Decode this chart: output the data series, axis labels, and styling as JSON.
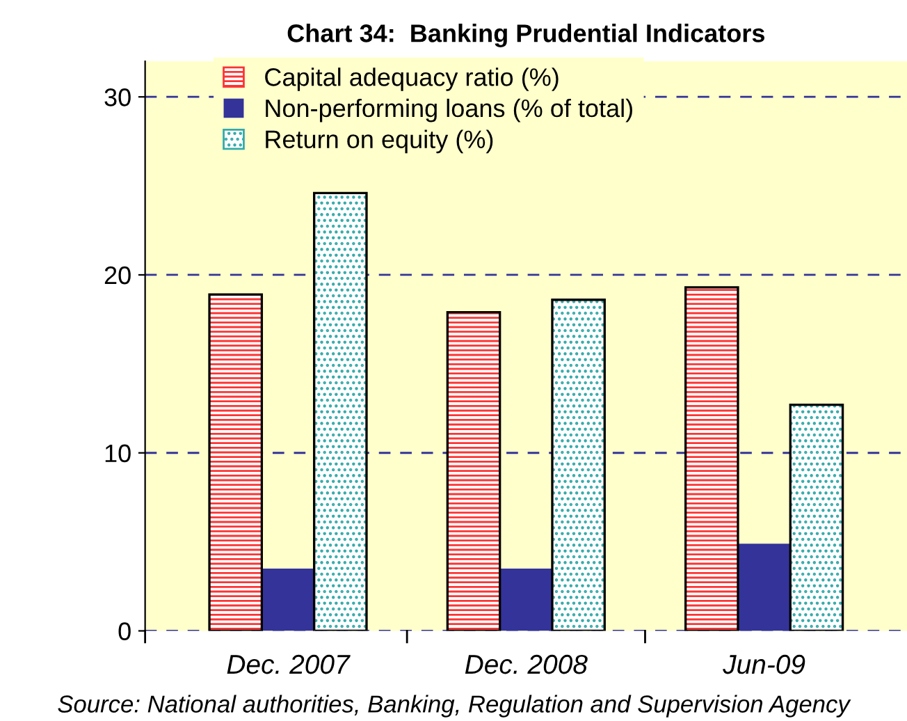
{
  "chart_data": {
    "type": "bar",
    "title": "Chart 34:  Banking Prudential Indicators",
    "categories": [
      "Dec. 2007",
      "Dec. 2008",
      "Jun-09"
    ],
    "series": [
      {
        "name": "Capital adequacy ratio (%)",
        "color": "#ff3333",
        "values": [
          18.9,
          17.9,
          19.3
        ]
      },
      {
        "name": "Non-performing loans (% of total)",
        "color": "#333399",
        "values": [
          3.5,
          3.5,
          4.9
        ]
      },
      {
        "name": "Return on equity (%)",
        "color": "#33aaaa",
        "values": [
          24.6,
          18.6,
          12.7
        ]
      }
    ],
    "ylim": [
      0,
      32
    ],
    "yticks": [
      0,
      10,
      20,
      30
    ],
    "grid": "y",
    "legend": "top left",
    "annotations": [
      "Source: National authorities, Banking, Regulation and Supervision Agency"
    ]
  }
}
